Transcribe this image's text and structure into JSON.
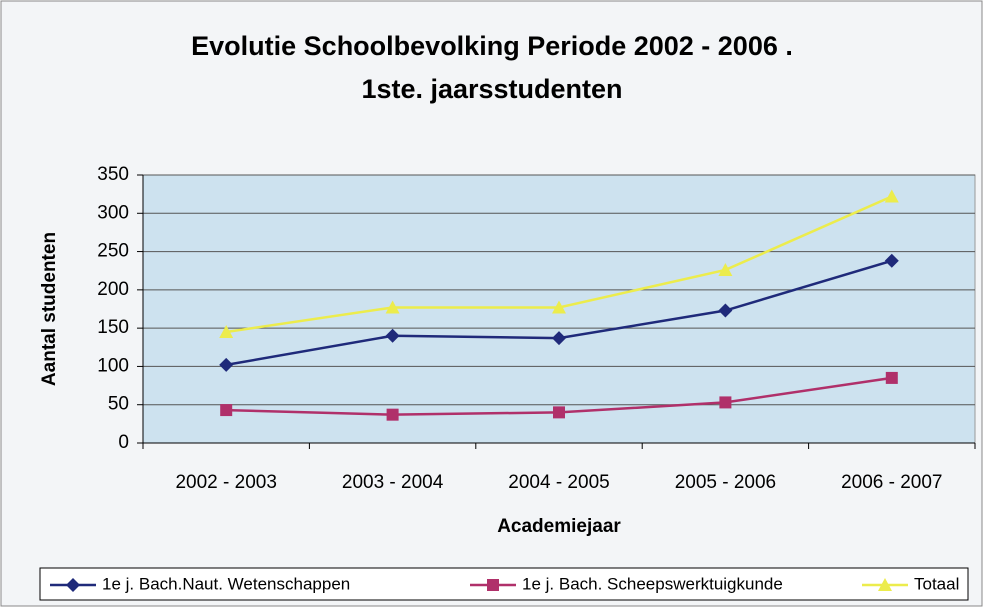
{
  "chart_data": {
    "type": "line",
    "title": "Evolutie Schoolbevolking Periode 2002 - 2006 .",
    "subtitle": "1ste. jaarsstudenten",
    "x_label": "Academiejaar",
    "y_label": "Aantal studenten",
    "categories": [
      "2002 - 2003",
      "2003 - 2004",
      "2004 - 2005",
      "2005 - 2006",
      "2006 - 2007"
    ],
    "series": [
      {
        "name": "1e j. Bach.Naut. Wetenschappen",
        "color": "#1f2a7a",
        "marker": "diamond",
        "values": [
          102,
          140,
          137,
          173,
          238
        ]
      },
      {
        "name": "1e j. Bach. Scheepswerktuigkunde",
        "color": "#b0306a",
        "marker": "square",
        "values": [
          43,
          37,
          40,
          53,
          85
        ]
      },
      {
        "name": "Totaal",
        "color": "#ecec4c",
        "marker": "triangle",
        "values": [
          145,
          177,
          177,
          226,
          322
        ]
      }
    ],
    "ylim": [
      0,
      350
    ],
    "yticks": [
      0,
      50,
      100,
      150,
      200,
      250,
      300,
      350
    ],
    "grid": true,
    "legend": "bottom"
  }
}
